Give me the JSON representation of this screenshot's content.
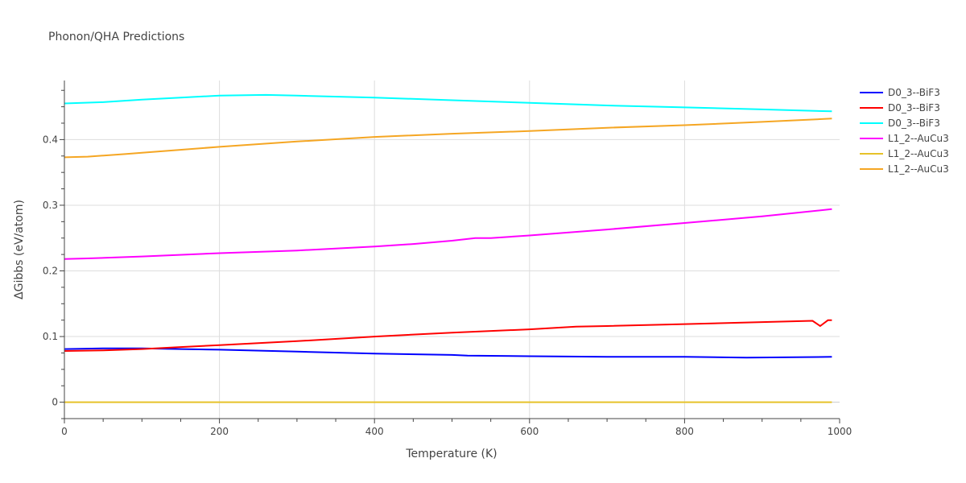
{
  "chart_data": {
    "type": "line",
    "title": "Phonon/QHA Predictions",
    "xlabel": "Temperature (K)",
    "ylabel": "ΔGibbs (eV/atom)",
    "xlim": [
      0,
      1000
    ],
    "ylim": [
      -0.025,
      0.49
    ],
    "xticks": [
      0,
      200,
      400,
      600,
      800,
      1000
    ],
    "xtick_labels": [
      "0",
      "200",
      "400",
      "600",
      "800",
      "1000"
    ],
    "yticks": [
      0,
      0.1,
      0.2,
      0.3,
      0.4
    ],
    "ytick_labels": [
      "0",
      "0.1",
      "0.2",
      "0.3",
      "0.4"
    ],
    "grid": true,
    "legend_position": "top-right",
    "series": [
      {
        "name": "D0_3--BiF3",
        "color": "#0000ff",
        "x": [
          0,
          50,
          100,
          150,
          200,
          300,
          400,
          500,
          520,
          600,
          700,
          800,
          880,
          990
        ],
        "y": [
          0.081,
          0.082,
          0.082,
          0.081,
          0.08,
          0.077,
          0.074,
          0.072,
          0.071,
          0.07,
          0.069,
          0.069,
          0.068,
          0.069
        ]
      },
      {
        "name": "D0_3--BiF3",
        "color": "#ff0000",
        "x": [
          0,
          50,
          100,
          150,
          200,
          300,
          400,
          500,
          600,
          660,
          700,
          800,
          900,
          965,
          975,
          985,
          990
        ],
        "y": [
          0.078,
          0.079,
          0.081,
          0.084,
          0.087,
          0.093,
          0.1,
          0.106,
          0.111,
          0.115,
          0.116,
          0.119,
          0.122,
          0.124,
          0.116,
          0.125,
          0.125
        ]
      },
      {
        "name": "D0_3--BiF3",
        "color": "#00ffff",
        "x": [
          0,
          50,
          100,
          150,
          200,
          260,
          300,
          400,
          500,
          600,
          700,
          800,
          900,
          990
        ],
        "y": [
          0.455,
          0.457,
          0.461,
          0.464,
          0.467,
          0.468,
          0.467,
          0.464,
          0.46,
          0.456,
          0.452,
          0.449,
          0.446,
          0.443
        ]
      },
      {
        "name": "L1_2--AuCu3",
        "color": "#ff00ff",
        "x": [
          0,
          30,
          100,
          200,
          300,
          350,
          400,
          450,
          500,
          530,
          550,
          600,
          700,
          800,
          900,
          990
        ],
        "y": [
          0.218,
          0.219,
          0.222,
          0.227,
          0.231,
          0.234,
          0.237,
          0.241,
          0.246,
          0.25,
          0.25,
          0.254,
          0.263,
          0.273,
          0.283,
          0.294
        ]
      },
      {
        "name": "L1_2--AuCu3",
        "color": "#e6c229",
        "x": [
          0,
          200,
          400,
          600,
          800,
          990
        ],
        "y": [
          0.0,
          0.0,
          0.0,
          0.0,
          0.0,
          0.0
        ]
      },
      {
        "name": "L1_2--AuCu3",
        "color": "#f5a623",
        "x": [
          0,
          30,
          80,
          100,
          200,
          300,
          400,
          500,
          600,
          700,
          800,
          900,
          990
        ],
        "y": [
          0.373,
          0.374,
          0.378,
          0.38,
          0.389,
          0.397,
          0.404,
          0.409,
          0.413,
          0.418,
          0.422,
          0.427,
          0.432
        ]
      }
    ]
  }
}
